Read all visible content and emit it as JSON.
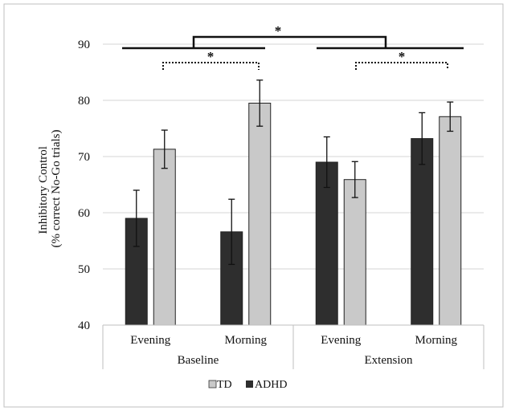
{
  "chart_data": {
    "type": "bar",
    "ylabel_line1": "Inhibitory Control",
    "ylabel_line2": "(% correct No-Go trials)",
    "ylim": [
      40,
      90
    ],
    "yticks": [
      40,
      50,
      60,
      70,
      80,
      90
    ],
    "grid": true,
    "legend_position": "bottom-center",
    "groups": [
      {
        "label": "Baseline",
        "categories": [
          "Evening",
          "Morning"
        ]
      },
      {
        "label": "Extension",
        "categories": [
          "Evening",
          "Morning"
        ]
      }
    ],
    "series": [
      {
        "name": "TD",
        "color": "#c9c9c9",
        "values": [
          71.3,
          79.5,
          65.9,
          77.1
        ],
        "errors": [
          3.4,
          4.1,
          3.2,
          2.6
        ]
      },
      {
        "name": "ADHD",
        "color": "#2e2e2e",
        "values": [
          59.0,
          56.6,
          69.0,
          73.2
        ],
        "errors": [
          5.0,
          5.8,
          4.5,
          4.6
        ]
      }
    ],
    "significance": [
      {
        "label": "*",
        "between": "Baseline vs Extension"
      },
      {
        "label": "*",
        "between": "Baseline Evening TD vs Baseline Morning TD"
      },
      {
        "label": "*",
        "between": "Extension Evening TD vs Extension Morning TD"
      }
    ]
  }
}
